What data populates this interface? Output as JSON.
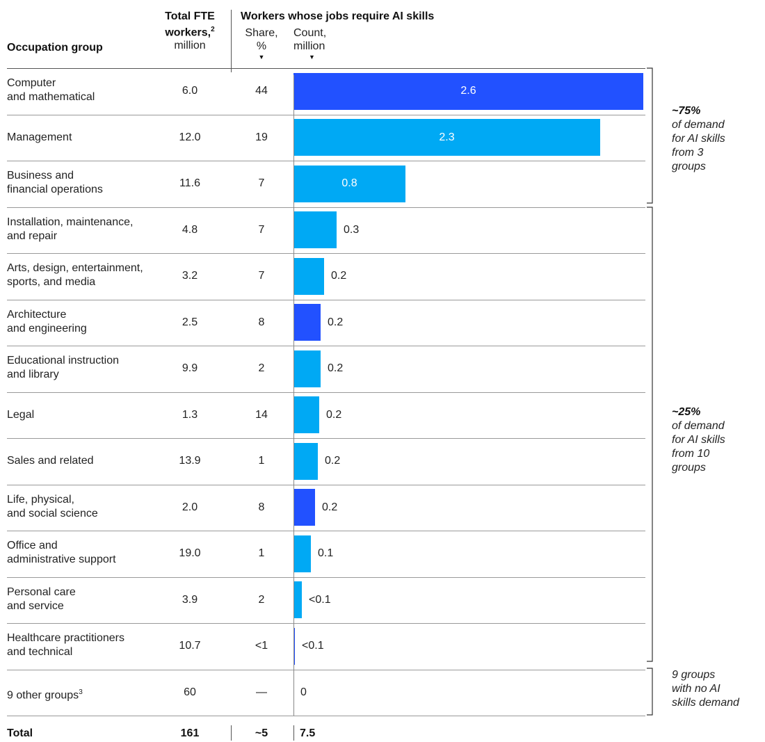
{
  "headers": {
    "occupation": "Occupation group",
    "total_fte_line1": "Total FTE",
    "total_fte_line2": "workers,",
    "total_fte_sup": "2",
    "total_fte_unit": "million",
    "workers_title": "Workers whose jobs require AI skills",
    "share_line1": "Share,",
    "share_line2": "%",
    "count_line1": "Count,",
    "count_line2": "million"
  },
  "colors": {
    "bright_blue": "#00a9f4",
    "royal_blue": "#2251ff"
  },
  "chart_data": {
    "type": "bar",
    "orientation": "horizontal",
    "xlim": [
      0,
      2.6
    ],
    "categories": [
      "Computer and mathematical",
      "Management",
      "Business and financial operations",
      "Installation, maintenance, and repair",
      "Arts, design, entertainment, sports, and media",
      "Architecture and engineering",
      "Educational instruction and library",
      "Legal",
      "Sales and related",
      "Life, physical, and social science",
      "Office and administrative support",
      "Personal care and service",
      "Healthcare practitioners and technical",
      "9 other groups"
    ],
    "rows": [
      {
        "label1": "Computer",
        "label2": "and mathematical",
        "fte": "6.0",
        "share": "44",
        "count": 2.6,
        "count_label": "2.6",
        "color": "#2251ff"
      },
      {
        "label1": "Management",
        "label2": "",
        "fte": "12.0",
        "share": "19",
        "count": 2.28,
        "count_label": "2.3",
        "color": "#00a9f4"
      },
      {
        "label1": "Business and",
        "label2": "financial operations",
        "fte": "11.6",
        "share": "7",
        "count": 0.83,
        "count_label": "0.8",
        "color": "#00a9f4"
      },
      {
        "label1": "Installation, maintenance,",
        "label2": "and repair",
        "fte": "4.8",
        "share": "7",
        "count": 0.32,
        "count_label": "0.3",
        "color": "#00a9f4"
      },
      {
        "label1": "Arts, design, entertainment,",
        "label2": "sports, and media",
        "fte": "3.2",
        "share": "7",
        "count": 0.23,
        "count_label": "0.2",
        "color": "#00a9f4"
      },
      {
        "label1": "Architecture",
        "label2": "and engineering",
        "fte": "2.5",
        "share": "8",
        "count": 0.2,
        "count_label": "0.2",
        "color": "#2251ff"
      },
      {
        "label1": "Educational instruction",
        "label2": "and library",
        "fte": "9.9",
        "share": "2",
        "count": 0.2,
        "count_label": "0.2",
        "color": "#00a9f4"
      },
      {
        "label1": "Legal",
        "label2": "",
        "fte": "1.3",
        "share": "14",
        "count": 0.19,
        "count_label": "0.2",
        "color": "#00a9f4"
      },
      {
        "label1": "Sales and related",
        "label2": "",
        "fte": "13.9",
        "share": "1",
        "count": 0.18,
        "count_label": "0.2",
        "color": "#00a9f4"
      },
      {
        "label1": "Life, physical,",
        "label2": "and social science",
        "fte": "2.0",
        "share": "8",
        "count": 0.16,
        "count_label": "0.2",
        "color": "#2251ff"
      },
      {
        "label1": "Office and",
        "label2": "administrative support",
        "fte": "19.0",
        "share": "1",
        "count": 0.13,
        "count_label": "0.1",
        "color": "#00a9f4"
      },
      {
        "label1": "Personal care",
        "label2": "and service",
        "fte": "3.9",
        "share": "2",
        "count": 0.06,
        "count_label": "<0.1",
        "color": "#00a9f4"
      },
      {
        "label1": "Healthcare practitioners",
        "label2": "and technical",
        "fte": "10.7",
        "share": "<1",
        "count": 0.01,
        "count_label": "<0.1",
        "color": "#2251ff"
      },
      {
        "label1": "9 other groups",
        "label1_sup": "3",
        "label2": "",
        "fte": "60",
        "share": "—",
        "count": 0,
        "count_label": "0",
        "color": "#00a9f4"
      }
    ],
    "total": {
      "label": "Total",
      "fte": "161",
      "share": "~5",
      "count": "7.5"
    },
    "annotations": [
      {
        "bold": "~75%",
        "text": [
          "of demand",
          "for AI skills",
          "from 3",
          "groups"
        ]
      },
      {
        "bold": "~25%",
        "text": [
          "of demand",
          "for AI skills",
          "from 10",
          "groups"
        ]
      },
      {
        "bold": "",
        "text": [
          "9 groups",
          "with no AI",
          "skills demand"
        ]
      }
    ]
  }
}
